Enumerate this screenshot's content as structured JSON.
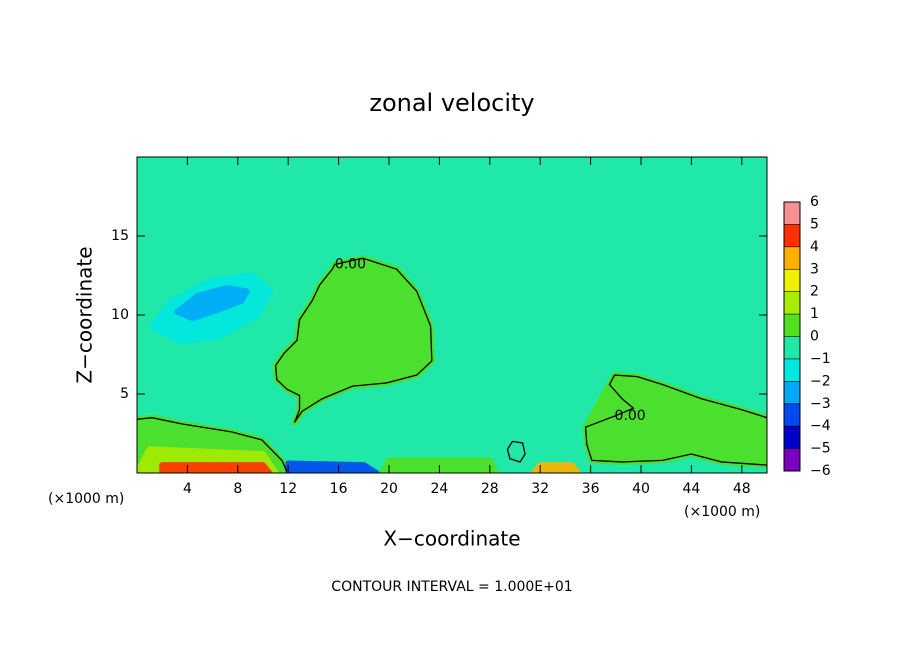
{
  "chart_data": {
    "type": "contour",
    "title": "zonal velocity",
    "xlabel": "X−coordinate",
    "ylabel": "Z−coordinate",
    "x_unit": "(×1000 m)",
    "note": "CONTOUR INTERVAL = 1.000E+01",
    "xlim": [
      0,
      50
    ],
    "ylim": [
      0,
      20
    ],
    "xticks": [
      4,
      8,
      12,
      16,
      20,
      24,
      28,
      32,
      36,
      40,
      44,
      48
    ],
    "yticks": [
      5,
      10,
      15
    ],
    "colorbar": {
      "ticks": [
        {
          "value": -6,
          "label": "−6"
        },
        {
          "value": -5,
          "label": "−5"
        },
        {
          "value": -4,
          "label": "−4"
        },
        {
          "value": -3,
          "label": "−3"
        },
        {
          "value": -2,
          "label": "−2"
        },
        {
          "value": -1,
          "label": "−1"
        },
        0,
        1,
        2,
        3,
        4,
        5,
        6
      ],
      "colors": [
        "#7b00c0",
        "#0000c8",
        "#0048f0",
        "#00a8f8",
        "#00e8e0",
        "#20e8a8",
        "#50e020",
        "#a8ec00",
        "#f0f000",
        "#ffb000",
        "#ff3000",
        "#f49090"
      ]
    },
    "background": -0.5,
    "regions": [
      {
        "value": -1.5,
        "x": [
          1.2,
          2.8,
          6.0,
          9.1,
          10.6,
          9.5,
          6.7,
          3.6
        ],
        "y": [
          9.3,
          10.9,
          12.2,
          12.5,
          11.5,
          10.0,
          8.7,
          8.3
        ]
      },
      {
        "value": -2.5,
        "x": [
          3.2,
          4.8,
          7.1,
          8.7,
          8.3,
          6.3,
          4.4
        ],
        "y": [
          10.2,
          11.2,
          11.7,
          11.5,
          10.9,
          10.3,
          9.8
        ]
      },
      {
        "value": 0.5,
        "x": [
          15.7,
          17.9,
          20.6,
          22.2,
          23.3,
          23.4,
          22.2,
          19.8,
          17.1,
          14.7,
          13.1,
          12.5,
          12.9,
          12.9,
          11.9,
          11.1,
          11.0,
          11.7,
          12.7,
          12.9,
          13.9,
          14.5,
          15.5
        ],
        "y": [
          13.2,
          13.6,
          12.9,
          11.5,
          9.3,
          7.1,
          6.2,
          5.7,
          5.5,
          4.7,
          3.9,
          3.2,
          4.0,
          4.9,
          5.3,
          5.9,
          6.8,
          7.6,
          8.4,
          9.7,
          10.9,
          11.9,
          12.9
        ]
      },
      {
        "value": 0.5,
        "x": [
          37.9,
          39.7,
          41.7,
          44.8,
          48.0,
          50,
          50,
          46.4,
          44.0,
          41.7,
          38.5,
          36.1,
          35.7,
          35.6,
          37.5
        ],
        "y": [
          6.2,
          6.1,
          5.6,
          4.7,
          4.0,
          3.5,
          0.5,
          0.7,
          1.2,
          0.8,
          0.7,
          0.8,
          1.8,
          2.9,
          5.6
        ]
      },
      {
        "value": 0.5,
        "x": [
          0,
          1.2,
          3.6,
          7.5,
          9.9,
          11.5,
          11.9,
          0
        ],
        "y": [
          3.4,
          3.5,
          3.1,
          2.6,
          2.1,
          0.8,
          0,
          0
        ]
      },
      {
        "value": 1.5,
        "x": [
          1,
          10,
          11,
          0
        ],
        "y": [
          1.5,
          1.2,
          0,
          0
        ]
      },
      {
        "value": 4.5,
        "x": [
          2,
          10,
          10.5,
          2
        ],
        "y": [
          0.5,
          0.5,
          0,
          0
        ]
      },
      {
        "value": -3.5,
        "x": [
          12,
          18,
          19,
          12
        ],
        "y": [
          0.6,
          0.5,
          0,
          0
        ]
      },
      {
        "value": 0.5,
        "x": [
          20,
          28,
          28.5,
          19.5
        ],
        "y": [
          0.8,
          0.8,
          0,
          0
        ]
      },
      {
        "value": 3.5,
        "x": [
          32,
          34.5,
          35,
          31.5
        ],
        "y": [
          0.5,
          0.5,
          0,
          0
        ]
      }
    ],
    "contours": [
      {
        "label": "0.00",
        "x": [
          15.7,
          17.9,
          20.6,
          22.2,
          23.3,
          23.4,
          22.2,
          19.8,
          17.1,
          14.7,
          13.1,
          12.5,
          12.9,
          12.9,
          11.9,
          11.1,
          11.0,
          11.7,
          12.7,
          12.9,
          13.9,
          14.5,
          15.5,
          15.7
        ],
        "y": [
          13.2,
          13.6,
          12.9,
          11.5,
          9.3,
          7.1,
          6.2,
          5.7,
          5.5,
          4.7,
          3.9,
          3.2,
          4.0,
          4.9,
          5.3,
          5.9,
          6.8,
          7.6,
          8.4,
          9.7,
          10.9,
          11.9,
          12.9,
          13.2
        ]
      },
      {
        "label": "0.00",
        "x": [
          37.9,
          35.6,
          35.7,
          36.1,
          38.5,
          41.7,
          44.0,
          46.4,
          50,
          null,
          50,
          48.0,
          44.8,
          41.7,
          39.7,
          37.9,
          37.5,
          38.5,
          39.4,
          37.9
        ],
        "y": [
          3.6,
          2.9,
          1.8,
          0.8,
          0.7,
          0.8,
          1.2,
          0.7,
          0.5,
          null,
          3.5,
          4.0,
          4.7,
          5.6,
          6.1,
          6.2,
          5.6,
          4.7,
          4.1,
          3.6
        ]
      },
      {
        "x": [
          0,
          1.2,
          3.6,
          7.5,
          9.9,
          11.5,
          11.9
        ],
        "y": [
          3.4,
          3.5,
          3.1,
          2.6,
          2.1,
          0.8,
          0.1
        ]
      },
      {
        "x": [
          29.8,
          30.6,
          30.8,
          30.4,
          29.6,
          29.4,
          29.8
        ],
        "y": [
          2.0,
          1.9,
          1.2,
          0.7,
          0.9,
          1.5,
          2.0
        ]
      }
    ]
  }
}
